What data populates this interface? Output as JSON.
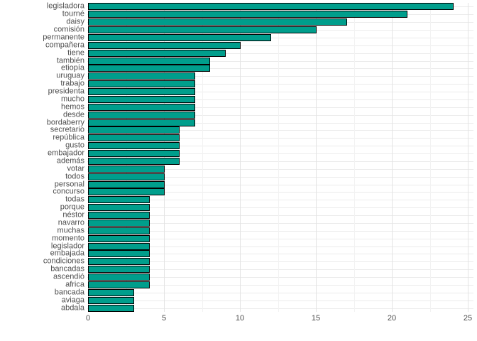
{
  "chart_data": {
    "type": "bar",
    "orientation": "horizontal",
    "title": "",
    "xlabel": "",
    "ylabel": "",
    "categories": [
      "legisladora",
      "tourné",
      "daisy",
      "comisión",
      "permanente",
      "compañera",
      "tiene",
      "también",
      "etiopía",
      "uruguay",
      "trabajo",
      "presidenta",
      "mucho",
      "hemos",
      "desde",
      "bordaberry",
      "secretario",
      "república",
      "gusto",
      "embajador",
      "además",
      "votar",
      "todos",
      "personal",
      "concurso",
      "todas",
      "porque",
      "néstor",
      "navarro",
      "muchas",
      "momento",
      "legislador",
      "embajada",
      "condiciones",
      "bancadas",
      "ascendió",
      "africa",
      "bancada",
      "aviaga",
      "abdala"
    ],
    "values": [
      24,
      21,
      17,
      15,
      12,
      10,
      9,
      8,
      8,
      7,
      7,
      7,
      7,
      7,
      7,
      7,
      6,
      6,
      6,
      6,
      6,
      5,
      5,
      5,
      5,
      4,
      4,
      4,
      4,
      4,
      4,
      4,
      4,
      4,
      4,
      4,
      4,
      3,
      3,
      3
    ],
    "x_ticks": [
      0,
      5,
      10,
      15,
      20,
      25
    ],
    "x_minor_ticks": [
      2.5,
      7.5,
      12.5,
      17.5,
      22.5
    ],
    "xlim": [
      0,
      25
    ],
    "grid": "on",
    "legend": null,
    "colors": {
      "bar_fill": "#009e8c",
      "bar_stroke": "#000000",
      "grid_major": "#e3e3e3",
      "grid_minor": "#f2f2f2",
      "row_grid": "#ebebeb",
      "axis_text": "#4d4d4d",
      "background": "#ffffff"
    }
  }
}
